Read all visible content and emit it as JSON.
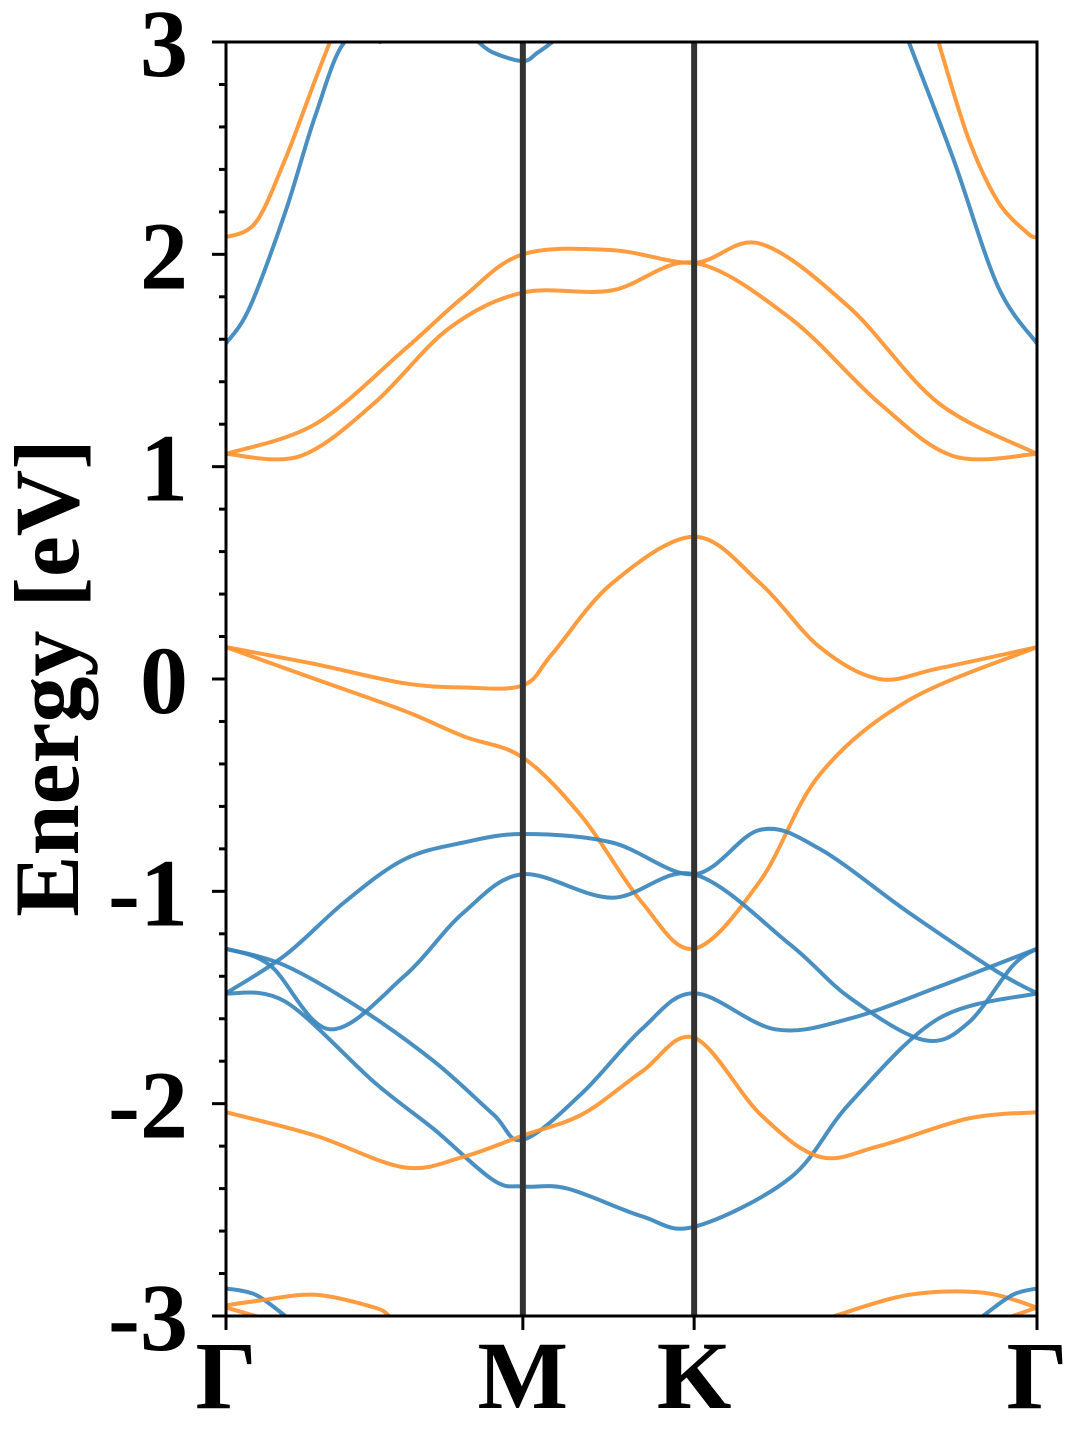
{
  "chart_data": {
    "type": "line",
    "title": "",
    "xlabel": "",
    "ylabel": "Energy [eV]",
    "ylim": [
      -3,
      3
    ],
    "yticks": [
      -3,
      -2,
      -1,
      0,
      1,
      2,
      3
    ],
    "xlim": [
      0,
      2.732
    ],
    "kpath": [
      {
        "label": "Γ",
        "x": 0
      },
      {
        "label": "M",
        "x": 1.0
      },
      {
        "label": "K",
        "x": 1.577
      },
      {
        "label": "Γ",
        "x": 2.732
      }
    ],
    "grid": false,
    "colors": {
      "blue_bands": "#3a86bd",
      "orange_bands": "#ff9430",
      "kpoint_lines": "#333333"
    },
    "series": [
      {
        "color": "orange",
        "x": [
          0,
          0.1,
          0.2,
          0.3,
          0.35
        ],
        "y": [
          2.08,
          2.15,
          2.45,
          2.82,
          3.0
        ]
      },
      {
        "color": "orange",
        "x": [
          2.4,
          2.5,
          2.6,
          2.7,
          2.732
        ],
        "y": [
          3.0,
          2.55,
          2.25,
          2.1,
          2.08
        ]
      },
      {
        "color": "blue",
        "x": [
          0,
          0.08,
          0.2,
          0.3,
          0.4,
          0.52
        ],
        "y": [
          1.58,
          1.75,
          2.2,
          2.65,
          3.0,
          3.0
        ]
      },
      {
        "color": "blue",
        "x": [
          0.85,
          0.9,
          1.0,
          1.05,
          1.1
        ],
        "y": [
          3.0,
          2.95,
          2.91,
          2.95,
          3.0
        ]
      },
      {
        "color": "blue",
        "x": [
          2.3,
          2.45,
          2.6,
          2.732
        ],
        "y": [
          3.0,
          2.45,
          1.85,
          1.58
        ]
      },
      {
        "color": "orange",
        "x": [
          0,
          0.3,
          0.6,
          0.8,
          1.0,
          1.3,
          1.577,
          1.8,
          2.1,
          2.4,
          2.732
        ],
        "y": [
          1.06,
          1.2,
          1.55,
          1.8,
          2.0,
          2.02,
          1.96,
          2.05,
          1.75,
          1.3,
          1.06
        ]
      },
      {
        "color": "orange",
        "x": [
          0,
          0.25,
          0.5,
          0.75,
          1.0,
          1.3,
          1.577,
          1.9,
          2.2,
          2.45,
          2.732
        ],
        "y": [
          1.06,
          1.05,
          1.3,
          1.65,
          1.82,
          1.83,
          1.96,
          1.7,
          1.3,
          1.05,
          1.06
        ]
      },
      {
        "color": "orange",
        "x": [
          0,
          0.3,
          0.6,
          0.8,
          1.0,
          1.1,
          1.3,
          1.577,
          1.8,
          2.0,
          2.2,
          2.4,
          2.732
        ],
        "y": [
          0.15,
          0.07,
          -0.02,
          -0.04,
          -0.03,
          0.12,
          0.45,
          0.67,
          0.45,
          0.15,
          0.0,
          0.05,
          0.15
        ]
      },
      {
        "color": "orange",
        "x": [
          0,
          0.3,
          0.6,
          0.8,
          1.0,
          1.2,
          1.4,
          1.577,
          1.8,
          2.0,
          2.3,
          2.732
        ],
        "y": [
          0.15,
          0.0,
          -0.15,
          -0.27,
          -0.37,
          -0.65,
          -1.05,
          -1.27,
          -0.95,
          -0.45,
          -0.1,
          0.15
        ]
      },
      {
        "color": "blue",
        "x": [
          0,
          0.2,
          0.4,
          0.6,
          0.8,
          1.0,
          1.3,
          1.577,
          1.8,
          2.0,
          2.3,
          2.6,
          2.732
        ],
        "y": [
          -1.48,
          -1.3,
          -1.05,
          -0.85,
          -0.77,
          -0.73,
          -0.77,
          -0.92,
          -0.71,
          -0.8,
          -1.1,
          -1.38,
          -1.48
        ]
      },
      {
        "color": "blue",
        "x": [
          0,
          0.15,
          0.35,
          0.6,
          0.8,
          1.0,
          1.3,
          1.577,
          1.9,
          2.1,
          2.35,
          2.5,
          2.65,
          2.732
        ],
        "y": [
          -1.27,
          -1.35,
          -1.65,
          -1.4,
          -1.1,
          -0.92,
          -1.03,
          -0.92,
          -1.25,
          -1.5,
          -1.7,
          -1.62,
          -1.35,
          -1.27
        ]
      },
      {
        "color": "blue",
        "x": [
          0,
          0.2,
          0.45,
          0.7,
          0.9,
          1.0,
          1.2,
          1.4,
          1.577,
          1.85,
          2.1,
          2.4,
          2.732
        ],
        "y": [
          -1.27,
          -1.35,
          -1.55,
          -1.8,
          -2.05,
          -2.17,
          -1.95,
          -1.65,
          -1.48,
          -1.65,
          -1.6,
          -1.45,
          -1.27
        ]
      },
      {
        "color": "blue",
        "x": [
          0,
          0.2,
          0.5,
          0.7,
          0.9,
          1.0,
          1.15,
          1.4,
          1.577,
          1.9,
          2.1,
          2.4,
          2.732
        ],
        "y": [
          -1.48,
          -1.52,
          -1.9,
          -2.12,
          -2.36,
          -2.39,
          -2.4,
          -2.53,
          -2.58,
          -2.35,
          -2.0,
          -1.6,
          -1.48
        ]
      },
      {
        "color": "orange",
        "x": [
          0,
          0.3,
          0.6,
          0.8,
          1.0,
          1.2,
          1.4,
          1.577,
          1.8,
          2.0,
          2.2,
          2.5,
          2.732
        ],
        "y": [
          -2.04,
          -2.15,
          -2.3,
          -2.25,
          -2.15,
          -2.05,
          -1.85,
          -1.69,
          -2.05,
          -2.25,
          -2.2,
          -2.07,
          -2.04
        ]
      },
      {
        "color": "blue",
        "x": [
          0,
          0.1,
          0.2
        ],
        "y": [
          -2.87,
          -2.9,
          -3.0
        ]
      },
      {
        "color": "orange",
        "x": [
          0,
          0.1,
          0.3,
          0.5,
          0.55
        ],
        "y": [
          -2.95,
          -2.93,
          -2.9,
          -2.96,
          -3.0
        ]
      },
      {
        "color": "orange",
        "x": [
          0,
          0.1
        ],
        "y": [
          -2.96,
          -3.0
        ]
      },
      {
        "color": "orange",
        "x": [
          2.05,
          2.3,
          2.55,
          2.732
        ],
        "y": [
          -3.0,
          -2.9,
          -2.89,
          -2.96
        ]
      },
      {
        "color": "blue",
        "x": [
          2.55,
          2.65,
          2.732
        ],
        "y": [
          -3.0,
          -2.9,
          -2.87
        ]
      },
      {
        "color": "orange",
        "x": [
          2.65,
          2.732
        ],
        "y": [
          -3.0,
          -2.96
        ]
      }
    ]
  }
}
